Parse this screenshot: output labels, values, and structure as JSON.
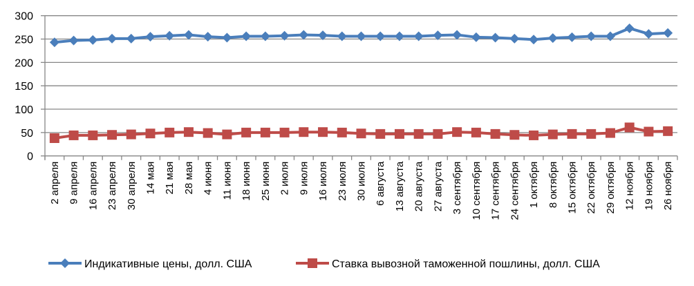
{
  "chart_data": {
    "type": "line",
    "title": "",
    "xlabel": "",
    "ylabel": "",
    "ylim": [
      0,
      300
    ],
    "yticks": [
      0,
      50,
      100,
      150,
      200,
      250,
      300
    ],
    "grid": true,
    "legend_placement": "bottom",
    "categories": [
      "2 апреля",
      "9 апреля",
      "16 апреля",
      "23 апреля",
      "30 апреля",
      "14 мая",
      "21 мая",
      "28 мая",
      "4 июня",
      "11 июня",
      "18 июня",
      "25 июня",
      "2 июля",
      "9 июля",
      "16 июля",
      "23 июля",
      "30 июля",
      "6 августа",
      "13 августа",
      "20 августа",
      "27 августа",
      "3 сентября",
      "10 сентября",
      "17 сентября",
      "24 сентября",
      "1 октября",
      "8 октября",
      "15 октября",
      "22 октября",
      "29 октября",
      "12 ноября",
      "19 ноября",
      "26 ноября"
    ],
    "series": [
      {
        "name": "Индикативные цены, долл. США",
        "color": "#4a7ebb",
        "marker": "diamond",
        "values": [
          243,
          247,
          248,
          251,
          251,
          255,
          257,
          259,
          255,
          253,
          256,
          256,
          257,
          259,
          258,
          256,
          256,
          256,
          256,
          256,
          258,
          259,
          254,
          253,
          251,
          249,
          252,
          254,
          256,
          256,
          273,
          261,
          263
        ]
      },
      {
        "name": "Ставка вывозной таможенной пошлины, долл. США",
        "color": "#be4b48",
        "marker": "square",
        "values": [
          38,
          44,
          44,
          45,
          46,
          48,
          50,
          51,
          49,
          46,
          50,
          50,
          50,
          51,
          51,
          50,
          48,
          47,
          47,
          47,
          47,
          51,
          50,
          47,
          45,
          44,
          46,
          47,
          47,
          49,
          61,
          52,
          53
        ]
      }
    ]
  }
}
